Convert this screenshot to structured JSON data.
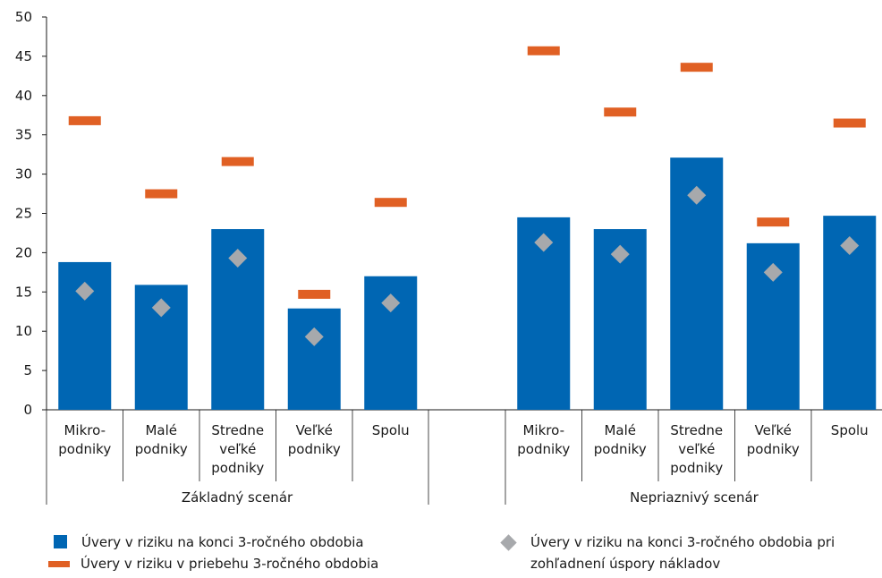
{
  "colors": {
    "bar": "#0066b3",
    "dash": "#e06024",
    "diamond": "#a7a9ac",
    "axis": "#1a1a1a"
  },
  "chart_data": {
    "type": "bar",
    "ylim": [
      0,
      50
    ],
    "yticks": [
      0,
      5,
      10,
      15,
      20,
      25,
      30,
      35,
      40,
      45,
      50
    ],
    "grid": false,
    "groups": [
      {
        "label": "Základný scenár",
        "categories": [
          [
            "Mikro-",
            "podniky"
          ],
          [
            "Malé",
            "podniky"
          ],
          [
            "Stredne",
            "veľké",
            "podniky"
          ],
          [
            "Veľké",
            "podniky"
          ],
          [
            "Spolu"
          ]
        ]
      },
      {
        "label": "Nepriaznivý scenár",
        "categories": [
          [
            "Mikro-",
            "podniky"
          ],
          [
            "Malé",
            "podniky"
          ],
          [
            "Stredne",
            "veľké",
            "podniky"
          ],
          [
            "Veľké",
            "podniky"
          ],
          [
            "Spolu"
          ]
        ]
      }
    ],
    "series": [
      {
        "name": "Úvery v riziku na konci 3-ročného obdobia",
        "kind": "bar",
        "values": [
          18.8,
          15.9,
          23.0,
          12.9,
          17.0,
          24.5,
          23.0,
          32.1,
          21.2,
          24.7
        ]
      },
      {
        "name": "Úvery v riziku v priebehu 3-ročného obdobia",
        "kind": "dash",
        "values": [
          36.8,
          27.5,
          31.6,
          14.7,
          26.4,
          45.7,
          37.9,
          43.6,
          23.9,
          36.5
        ]
      },
      {
        "name": "Úvery v riziku na konci 3-ročného obdobia pri zohľadnení úspory nákladov",
        "kind": "diamond",
        "values": [
          15.1,
          13.0,
          19.3,
          9.3,
          13.6,
          21.3,
          19.8,
          27.3,
          17.5,
          20.9
        ]
      }
    ]
  },
  "legend": {
    "bar_label": "Úvery v riziku na konci 3-ročného obdobia",
    "dash_label": "Úvery v riziku v priebehu 3-ročného obdobia",
    "diamond_label_line1": "Úvery v riziku na konci 3-ročného obdobia pri",
    "diamond_label_line2": "zohľadnení úspory nákladov"
  }
}
